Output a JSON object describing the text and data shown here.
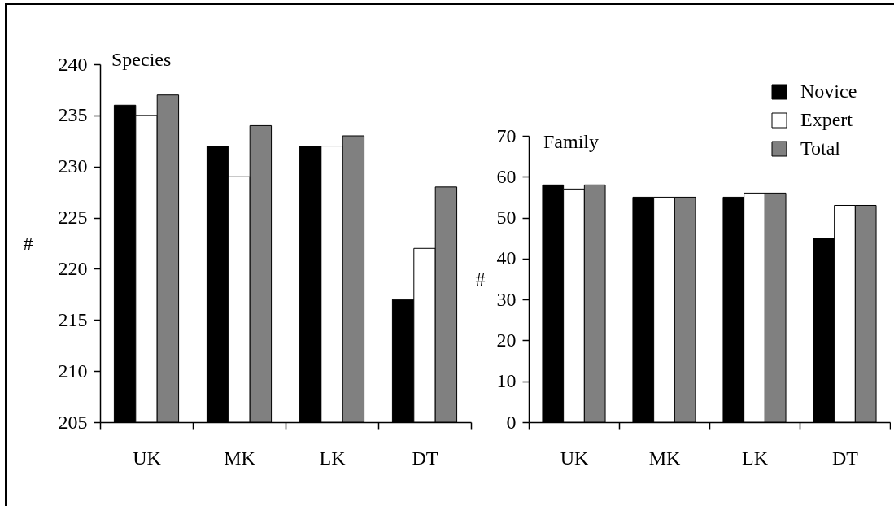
{
  "chart_data": [
    {
      "type": "bar",
      "title": "Species",
      "ylabel": "#",
      "categories": [
        "UK",
        "MK",
        "LK",
        "DT"
      ],
      "series": [
        {
          "color": "#000000",
          "values": [
            236,
            232,
            232,
            217
          ]
        },
        {
          "color": "#ffffff",
          "values": [
            235,
            229,
            232,
            222
          ]
        },
        {
          "color": "#808080",
          "values": [
            237,
            234,
            233,
            228
          ]
        }
      ],
      "ylim": [
        205,
        240
      ],
      "yticks": [
        205,
        210,
        215,
        220,
        225,
        230,
        235,
        240
      ]
    },
    {
      "type": "bar",
      "title": "Family",
      "ylabel": "#",
      "categories": [
        "UK",
        "MK",
        "LK",
        "DT"
      ],
      "series": [
        {
          "name": "Novice",
          "color": "#000000",
          "values": [
            58,
            55,
            55,
            45
          ]
        },
        {
          "name": "Expert",
          "color": "#ffffff",
          "values": [
            57,
            55,
            56,
            53
          ]
        },
        {
          "name": "Total",
          "color": "#808080",
          "values": [
            58,
            55,
            56,
            53
          ]
        }
      ],
      "ylim": [
        0,
        70
      ],
      "yticks": [
        0,
        10,
        20,
        30,
        40,
        50,
        60,
        70
      ],
      "legend": "top right"
    }
  ]
}
